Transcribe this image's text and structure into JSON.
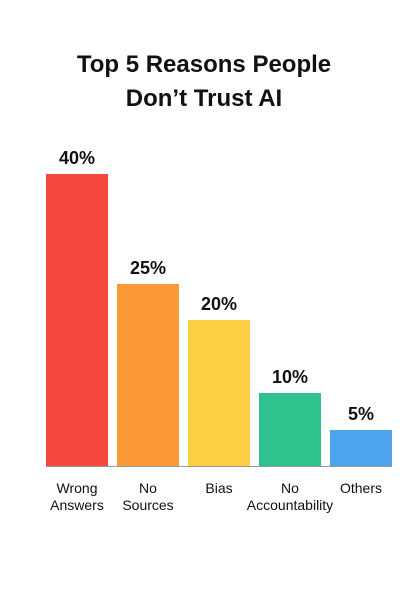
{
  "chart_data": {
    "type": "bar",
    "title": "Top 5 Reasons People Don’t Trust AI",
    "categories": [
      "Wrong Answers",
      "No Sources",
      "Bias",
      "No Accountability",
      "Others"
    ],
    "values": [
      40,
      25,
      20,
      10,
      5
    ],
    "value_labels": [
      "40%",
      "25%",
      "20%",
      "10%",
      "5%"
    ],
    "colors": [
      "#f4483e",
      "#fb9a37",
      "#fdd044",
      "#2fc28f",
      "#4da3ec"
    ]
  }
}
